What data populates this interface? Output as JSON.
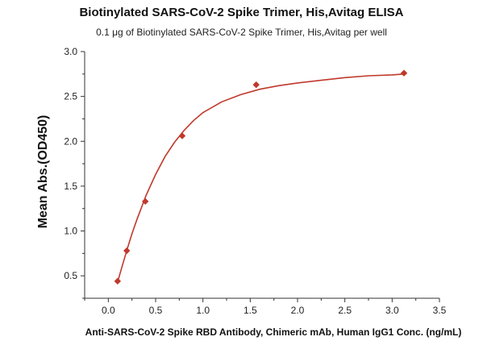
{
  "chart_data": {
    "type": "scatter",
    "title": "Biotinylated SARS-CoV-2 Spike Trimer, His,Avitag ELISA",
    "subtitle": "0.1 μg of Biotinylated SARS-CoV-2 Spike Trimer, His,Avitag per well",
    "xlabel": "Anti-SARS-CoV-2 Spike RBD Antibody, Chimeric mAb, Human IgG1 Conc. (ng/mL)",
    "ylabel": "Mean Abs.(OD450)",
    "xlim": [
      -0.25,
      3.5
    ],
    "ylim": [
      0.25,
      3.0
    ],
    "xticks": [
      "0.0",
      "0.5",
      "1.0",
      "1.5",
      "2.0",
      "2.5",
      "3.0",
      "3.5"
    ],
    "yticks": [
      "0.5",
      "1.0",
      "1.5",
      "2.0",
      "2.5",
      "3.0"
    ],
    "grid": false,
    "series": [
      {
        "x": [
          0.098,
          0.195,
          0.391,
          0.781,
          1.563,
          3.125
        ],
        "y": [
          0.44,
          0.78,
          1.33,
          2.06,
          2.63,
          2.76
        ],
        "color": "#c0392b",
        "marker": "diamond"
      }
    ],
    "fit_curve": {
      "type": "4PL",
      "color": "#c0392b",
      "points": [
        [
          0.098,
          0.43
        ],
        [
          0.15,
          0.62
        ],
        [
          0.2,
          0.8
        ],
        [
          0.25,
          0.97
        ],
        [
          0.3,
          1.12
        ],
        [
          0.4,
          1.4
        ],
        [
          0.5,
          1.63
        ],
        [
          0.6,
          1.83
        ],
        [
          0.7,
          1.99
        ],
        [
          0.8,
          2.12
        ],
        [
          0.9,
          2.23
        ],
        [
          1.0,
          2.32
        ],
        [
          1.2,
          2.44
        ],
        [
          1.4,
          2.52
        ],
        [
          1.6,
          2.58
        ],
        [
          1.8,
          2.62
        ],
        [
          2.0,
          2.65
        ],
        [
          2.25,
          2.68
        ],
        [
          2.5,
          2.71
        ],
        [
          2.75,
          2.73
        ],
        [
          3.0,
          2.74
        ],
        [
          3.125,
          2.75
        ]
      ]
    }
  }
}
